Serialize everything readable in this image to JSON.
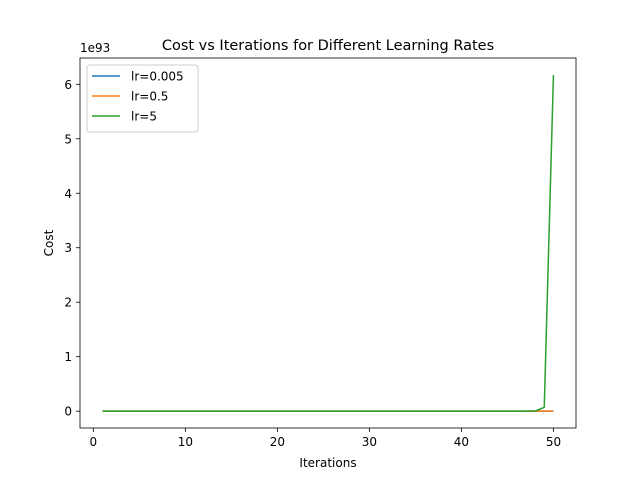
{
  "chart_data": {
    "type": "line",
    "title": "Cost vs Iterations for Different Learning Rates",
    "xlabel": "Iterations",
    "ylabel": "Cost",
    "y_scale_label": "1e93",
    "xlim": [
      -1.45,
      52.45
    ],
    "ylim": [
      -0.3087,
      6.4827
    ],
    "x_ticks": [
      0,
      10,
      20,
      30,
      40,
      50
    ],
    "x_tick_labels": [
      "0",
      "10",
      "20",
      "30",
      "40",
      "50"
    ],
    "y_ticks": [
      0,
      1,
      2,
      3,
      4,
      5,
      6
    ],
    "y_tick_labels": [
      "0",
      "1",
      "2",
      "3",
      "4",
      "5",
      "6"
    ],
    "legend_position": "upper-left",
    "grid": false,
    "x": [
      1,
      2,
      3,
      4,
      5,
      6,
      7,
      8,
      9,
      10,
      11,
      12,
      13,
      14,
      15,
      16,
      17,
      18,
      19,
      20,
      21,
      22,
      23,
      24,
      25,
      26,
      27,
      28,
      29,
      30,
      31,
      32,
      33,
      34,
      35,
      36,
      37,
      38,
      39,
      40,
      41,
      42,
      43,
      44,
      45,
      46,
      47,
      48,
      49,
      50
    ],
    "series": [
      {
        "name": "lr=0.005",
        "color": "#1f77b4",
        "values": [
          0,
          0,
          0,
          0,
          0,
          0,
          0,
          0,
          0,
          0,
          0,
          0,
          0,
          0,
          0,
          0,
          0,
          0,
          0,
          0,
          0,
          0,
          0,
          0,
          0,
          0,
          0,
          0,
          0,
          0,
          0,
          0,
          0,
          0,
          0,
          0,
          0,
          0,
          0,
          0,
          0,
          0,
          0,
          0,
          0,
          0,
          0,
          0,
          0,
          0
        ]
      },
      {
        "name": "lr=0.5",
        "color": "#ff7f0e",
        "values": [
          0,
          0,
          0,
          0,
          0,
          0,
          0,
          0,
          0,
          0,
          0,
          0,
          0,
          0,
          0,
          0,
          0,
          0,
          0,
          0,
          0,
          0,
          0,
          0,
          0,
          0,
          0,
          0,
          0,
          0,
          0,
          0,
          0,
          0,
          0,
          0,
          0,
          0,
          0,
          0,
          0,
          0,
          0,
          0,
          0,
          0,
          0,
          0,
          0,
          0
        ]
      },
      {
        "name": "lr=5",
        "color": "#2ca02c",
        "values": [
          0,
          0,
          0,
          0,
          0,
          0,
          0,
          0,
          0,
          0,
          0,
          0,
          0,
          0,
          0,
          0,
          0,
          0,
          0,
          0,
          0,
          0,
          0,
          0,
          0,
          0,
          0,
          0,
          0,
          0,
          0,
          0,
          0,
          0,
          0,
          0,
          0,
          0,
          0,
          0,
          0,
          0,
          0,
          0,
          0,
          0,
          0,
          0.003,
          0.07,
          6.17
        ]
      }
    ]
  }
}
